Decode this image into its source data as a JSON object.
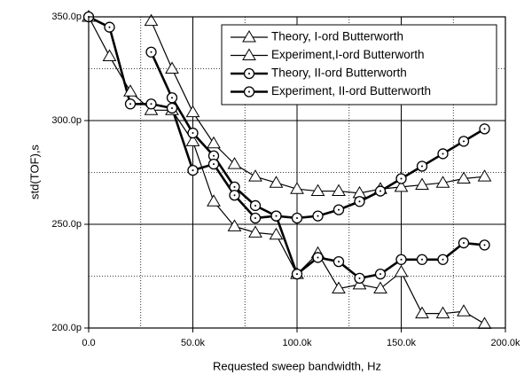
{
  "chart_data": {
    "type": "line",
    "x_label": "Requested sweep bandwidth, Hz",
    "y_label": "std(TOF),s",
    "x": [
      0,
      10000,
      20000,
      30000,
      40000,
      50000,
      60000,
      70000,
      80000,
      90000,
      100000,
      110000,
      120000,
      130000,
      140000,
      150000,
      160000,
      170000,
      180000,
      190000
    ],
    "series": [
      {
        "name": "Theory, I-ord Butterworth",
        "color": "#000000",
        "marker": "triangle",
        "line_width": 1.2,
        "values": [
          null,
          null,
          null,
          348,
          325,
          304,
          289,
          279,
          273,
          270,
          267,
          266,
          266,
          265,
          267,
          268,
          269,
          270,
          272,
          273
        ]
      },
      {
        "name": "Experiment,I-ord Butterworth",
        "color": "#000000",
        "marker": "triangle",
        "line_width": 1.2,
        "values": [
          350,
          331,
          314,
          305,
          305,
          290,
          261,
          249,
          246,
          245,
          226,
          236,
          219,
          221,
          219,
          227,
          207,
          207,
          208,
          202
        ]
      },
      {
        "name": "Theory, II-ord Butterworth",
        "color": "#000000",
        "marker": "circle",
        "line_width": 2.6,
        "values": [
          null,
          null,
          null,
          333,
          311,
          294,
          283,
          268,
          259,
          254,
          253,
          254,
          257,
          261,
          266,
          272,
          278,
          284,
          290,
          296
        ]
      },
      {
        "name": "Experiment, II-ord Butterworth",
        "color": "#000000",
        "marker": "circle",
        "line_width": 2.6,
        "values": [
          350,
          345,
          308,
          308,
          306,
          276,
          279,
          264,
          253,
          254,
          226,
          234,
          232,
          224,
          226,
          233,
          233,
          233,
          241,
          240
        ]
      }
    ],
    "xlim": [
      0,
      200000
    ],
    "ylim": [
      200,
      350
    ],
    "xticks": [
      {
        "value": 0,
        "label": "0.0"
      },
      {
        "value": 50000,
        "label": "50.0k"
      },
      {
        "value": 100000,
        "label": "100.0k"
      },
      {
        "value": 150000,
        "label": "150.0k"
      },
      {
        "value": 200000,
        "label": "200.0k"
      }
    ],
    "yticks": [
      {
        "value": 200,
        "label": "200.0p"
      },
      {
        "value": 250,
        "label": "250.0p"
      },
      {
        "value": 300,
        "label": "300.0p"
      },
      {
        "value": 350,
        "label": "350.0p"
      }
    ],
    "x_minor_grid": [
      25000,
      75000,
      125000,
      175000
    ],
    "y_minor_grid": [
      225,
      275,
      325
    ],
    "grid": true,
    "legend": "upper right"
  }
}
